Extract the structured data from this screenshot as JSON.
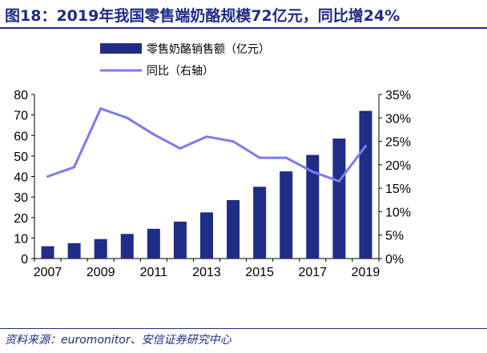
{
  "header": {
    "title": "图18：2019年我国零售端奶酪规模72亿元，同比增24%"
  },
  "footer": {
    "source": "资料来源：euromonitor、安信证券研究中心"
  },
  "colors": {
    "bar": "#1f2d86",
    "line": "#7b7bf0",
    "title": "#1f2d86"
  },
  "chart_data": {
    "type": "bar",
    "title": "图18：2019年我国零售端奶酪规模72亿元，同比增24%",
    "categories": [
      "2007",
      "2008",
      "2009",
      "2010",
      "2011",
      "2012",
      "2013",
      "2014",
      "2015",
      "2016",
      "2017",
      "2018",
      "2019"
    ],
    "x_tick_labels": [
      "2007",
      "2009",
      "2011",
      "2013",
      "2015",
      "2017",
      "2019"
    ],
    "legend_position": "top-center",
    "grid": false,
    "series": [
      {
        "name": "零售奶酪销售额（亿元）",
        "type": "bar",
        "axis": "left",
        "values": [
          6,
          7.5,
          9.5,
          12,
          14.5,
          18,
          22.5,
          28.5,
          35,
          42.5,
          50.5,
          58.5,
          72
        ]
      },
      {
        "name": "同比（右轴）",
        "type": "line",
        "axis": "right",
        "values": [
          17.5,
          19.5,
          32,
          30,
          26.5,
          23.5,
          26,
          25,
          21.5,
          21.5,
          18.5,
          16.5,
          24
        ]
      }
    ],
    "y_left": {
      "ylim": [
        0,
        80
      ],
      "ticks": [
        "0",
        "10",
        "20",
        "30",
        "40",
        "50",
        "60",
        "70",
        "80"
      ]
    },
    "y_right": {
      "ylim": [
        0,
        35
      ],
      "ticks": [
        "0%",
        "5%",
        "10%",
        "15%",
        "20%",
        "25%",
        "30%",
        "35%"
      ]
    }
  }
}
